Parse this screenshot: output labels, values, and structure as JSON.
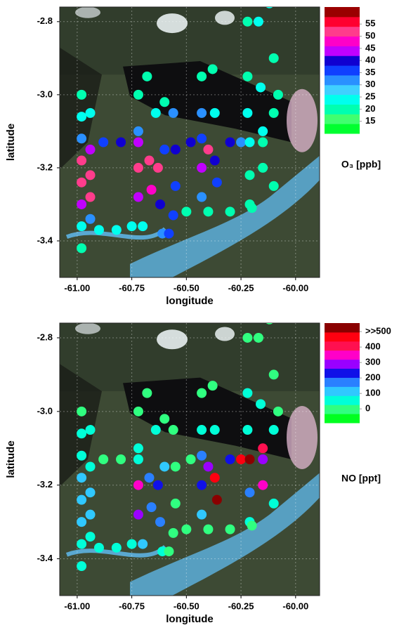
{
  "chart_data": [
    {
      "type": "scatter",
      "xlabel": "longitude",
      "ylabel": "latitude",
      "colorbar_label": "O₃ [ppb]",
      "xlim": [
        -61.08,
        -59.89
      ],
      "ylim": [
        -3.5,
        -2.76
      ],
      "xticks": [
        {
          "value": -61,
          "label": "-61.00"
        },
        -60.75,
        {
          "value": -60.5,
          "label": "-60.50"
        },
        -60.25,
        {
          "value": -60,
          "label": "-60.00"
        }
      ],
      "yticks": [
        -2.8,
        {
          "value": -3,
          "label": "-3.0"
        },
        -3.2,
        -3.4
      ],
      "grid": true,
      "clim": [
        10,
        62
      ],
      "cticks": [
        15,
        20,
        25,
        30,
        35,
        40,
        45,
        50,
        55
      ],
      "colors": [
        "#00ff30",
        "#40ff70",
        "#00ffb0",
        "#00ffee",
        "#40d0ff",
        "#2a90ff",
        "#1040ff",
        "#1000d0",
        "#c000ff",
        "#ff00c8",
        "#ff3c8c",
        "#ff0030",
        "#9a0000"
      ],
      "x": [
        -60.98,
        -60.98,
        -60.98,
        -60.98,
        -60.98,
        -60.98,
        -60.98,
        -60.98,
        -60.94,
        -60.94,
        -60.94,
        -60.94,
        -60.94,
        -60.88,
        -60.8,
        -60.72,
        -60.48,
        -60.3,
        -60.25,
        -60.15,
        -60.72,
        -60.72,
        -60.72,
        -60.72,
        -60.7,
        -60.68,
        -60.67,
        -60.66,
        -60.64,
        -60.63,
        -60.62,
        -60.61,
        -60.6,
        -60.6,
        -60.56,
        -60.55,
        -60.55,
        -60.56,
        -60.58,
        -60.43,
        -60.43,
        -60.43,
        -60.43,
        -60.43,
        -60.4,
        -60.38,
        -60.37,
        -60.37,
        -60.36,
        -60.22,
        -60.22,
        -60.22,
        -60.21,
        -60.21,
        -60.21,
        -60.17,
        -60.16,
        -60.15,
        -60.15,
        -60.12,
        -60.1,
        -60.1,
        -60.1,
        -60.08,
        -60.9,
        -60.82,
        -60.75,
        -60.5,
        -60.4,
        -60.3,
        -60.2
      ],
      "y": [
        -3.0,
        -3.06,
        -3.12,
        -3.18,
        -3.24,
        -3.3,
        -3.36,
        -3.42,
        -3.05,
        -3.15,
        -3.22,
        -3.28,
        -3.34,
        -3.13,
        -3.13,
        -3.13,
        -3.13,
        -3.13,
        -3.13,
        -3.13,
        -3.0,
        -3.1,
        -3.2,
        -3.28,
        -3.36,
        -2.95,
        -3.18,
        -3.26,
        -3.05,
        -3.2,
        -3.3,
        -3.38,
        -3.02,
        -3.15,
        -3.05,
        -3.15,
        -3.25,
        -3.33,
        -3.38,
        -2.95,
        -3.05,
        -3.12,
        -3.2,
        -3.28,
        -3.15,
        -2.93,
        -3.05,
        -3.18,
        -3.24,
        -2.8,
        -2.95,
        -3.05,
        -3.13,
        -3.22,
        -3.3,
        -2.8,
        -2.98,
        -3.1,
        -3.2,
        -2.75,
        -2.9,
        -3.05,
        -3.25,
        -3.0,
        -3.37,
        -3.37,
        -3.36,
        -3.32,
        -3.32,
        -3.32,
        -3.31
      ],
      "values": [
        20,
        25,
        30,
        50,
        50,
        45,
        25,
        20,
        25,
        45,
        52,
        50,
        30,
        35,
        40,
        42,
        40,
        40,
        30,
        20,
        20,
        30,
        50,
        45,
        25,
        20,
        52,
        48,
        25,
        50,
        40,
        30,
        20,
        35,
        30,
        38,
        36,
        37,
        36,
        20,
        30,
        36,
        45,
        30,
        50,
        20,
        25,
        40,
        35,
        20,
        20,
        25,
        25,
        20,
        20,
        25,
        25,
        25,
        20,
        25,
        20,
        20,
        20,
        20,
        25,
        25,
        25,
        20,
        20,
        20,
        20
      ]
    },
    {
      "type": "scatter",
      "xlabel": "longitude",
      "ylabel": "latitude",
      "colorbar_label": "NO [ppt]",
      "xlim": [
        -61.08,
        -59.89
      ],
      "ylim": [
        -3.5,
        -2.76
      ],
      "xticks": [
        {
          "value": -61,
          "label": "-61.00"
        },
        -60.75,
        {
          "value": -60.5,
          "label": "-60.50"
        },
        -60.25,
        {
          "value": -60,
          "label": "-60.00"
        }
      ],
      "yticks": [
        -2.8,
        {
          "value": -3,
          "label": "-3.0"
        },
        -3.2,
        -3.4
      ],
      "grid": true,
      "clim": [
        -90,
        555
      ],
      "cticks": [
        {
          "value": 500,
          "label": ">>500"
        },
        400,
        300,
        200,
        100,
        0
      ],
      "colors": [
        "#00ff20",
        "#30ff80",
        "#00ffd8",
        "#30c8ff",
        "#2a80ff",
        "#1010e8",
        "#9a00ff",
        "#ff00c8",
        "#ff1050",
        "#ff0010",
        "#8a0000"
      ],
      "x": [
        -60.98,
        -60.98,
        -60.98,
        -60.98,
        -60.98,
        -60.98,
        -60.98,
        -60.98,
        -60.94,
        -60.94,
        -60.94,
        -60.94,
        -60.94,
        -60.88,
        -60.8,
        -60.72,
        -60.48,
        -60.3,
        -60.25,
        -60.15,
        -60.72,
        -60.72,
        -60.72,
        -60.72,
        -60.7,
        -60.68,
        -60.67,
        -60.66,
        -60.64,
        -60.63,
        -60.62,
        -60.61,
        -60.6,
        -60.6,
        -60.56,
        -60.55,
        -60.55,
        -60.56,
        -60.58,
        -60.43,
        -60.43,
        -60.43,
        -60.43,
        -60.43,
        -60.4,
        -60.38,
        -60.37,
        -60.37,
        -60.36,
        -60.22,
        -60.22,
        -60.22,
        -60.21,
        -60.21,
        -60.21,
        -60.17,
        -60.16,
        -60.15,
        -60.15,
        -60.12,
        -60.1,
        -60.1,
        -60.1,
        -60.08,
        -60.9,
        -60.82,
        -60.75,
        -60.5,
        -60.4,
        -60.3,
        -60.2
      ],
      "y": [
        -3.0,
        -3.06,
        -3.12,
        -3.18,
        -3.24,
        -3.3,
        -3.36,
        -3.42,
        -3.05,
        -3.15,
        -3.22,
        -3.28,
        -3.34,
        -3.13,
        -3.13,
        -3.13,
        -3.13,
        -3.13,
        -3.13,
        -3.13,
        -3.0,
        -3.1,
        -3.2,
        -3.28,
        -3.36,
        -2.95,
        -3.18,
        -3.26,
        -3.05,
        -3.2,
        -3.3,
        -3.38,
        -3.02,
        -3.15,
        -3.05,
        -3.15,
        -3.25,
        -3.33,
        -3.38,
        -2.95,
        -3.05,
        -3.12,
        -3.2,
        -3.28,
        -3.15,
        -2.93,
        -3.05,
        -3.18,
        -3.24,
        -2.8,
        -2.95,
        -3.05,
        -3.13,
        -3.22,
        -3.3,
        -2.8,
        -2.98,
        -3.1,
        -3.2,
        -2.75,
        -2.9,
        -3.05,
        -3.25,
        -3.0,
        -3.37,
        -3.37,
        -3.36,
        -3.32,
        -3.32,
        -3.32,
        -3.31
      ],
      "values": [
        20,
        40,
        60,
        90,
        120,
        100,
        80,
        40,
        60,
        80,
        100,
        100,
        60,
        20,
        20,
        30,
        20,
        250,
        450,
        300,
        20,
        40,
        350,
        300,
        100,
        20,
        200,
        150,
        50,
        250,
        150,
        60,
        20,
        100,
        20,
        20,
        20,
        20,
        20,
        20,
        60,
        150,
        250,
        100,
        300,
        20,
        80,
        450,
        500,
        20,
        30,
        60,
        500,
        200,
        40,
        20,
        40,
        400,
        350,
        20,
        20,
        40,
        40,
        20,
        40,
        30,
        40,
        20,
        20,
        20,
        20
      ]
    }
  ]
}
